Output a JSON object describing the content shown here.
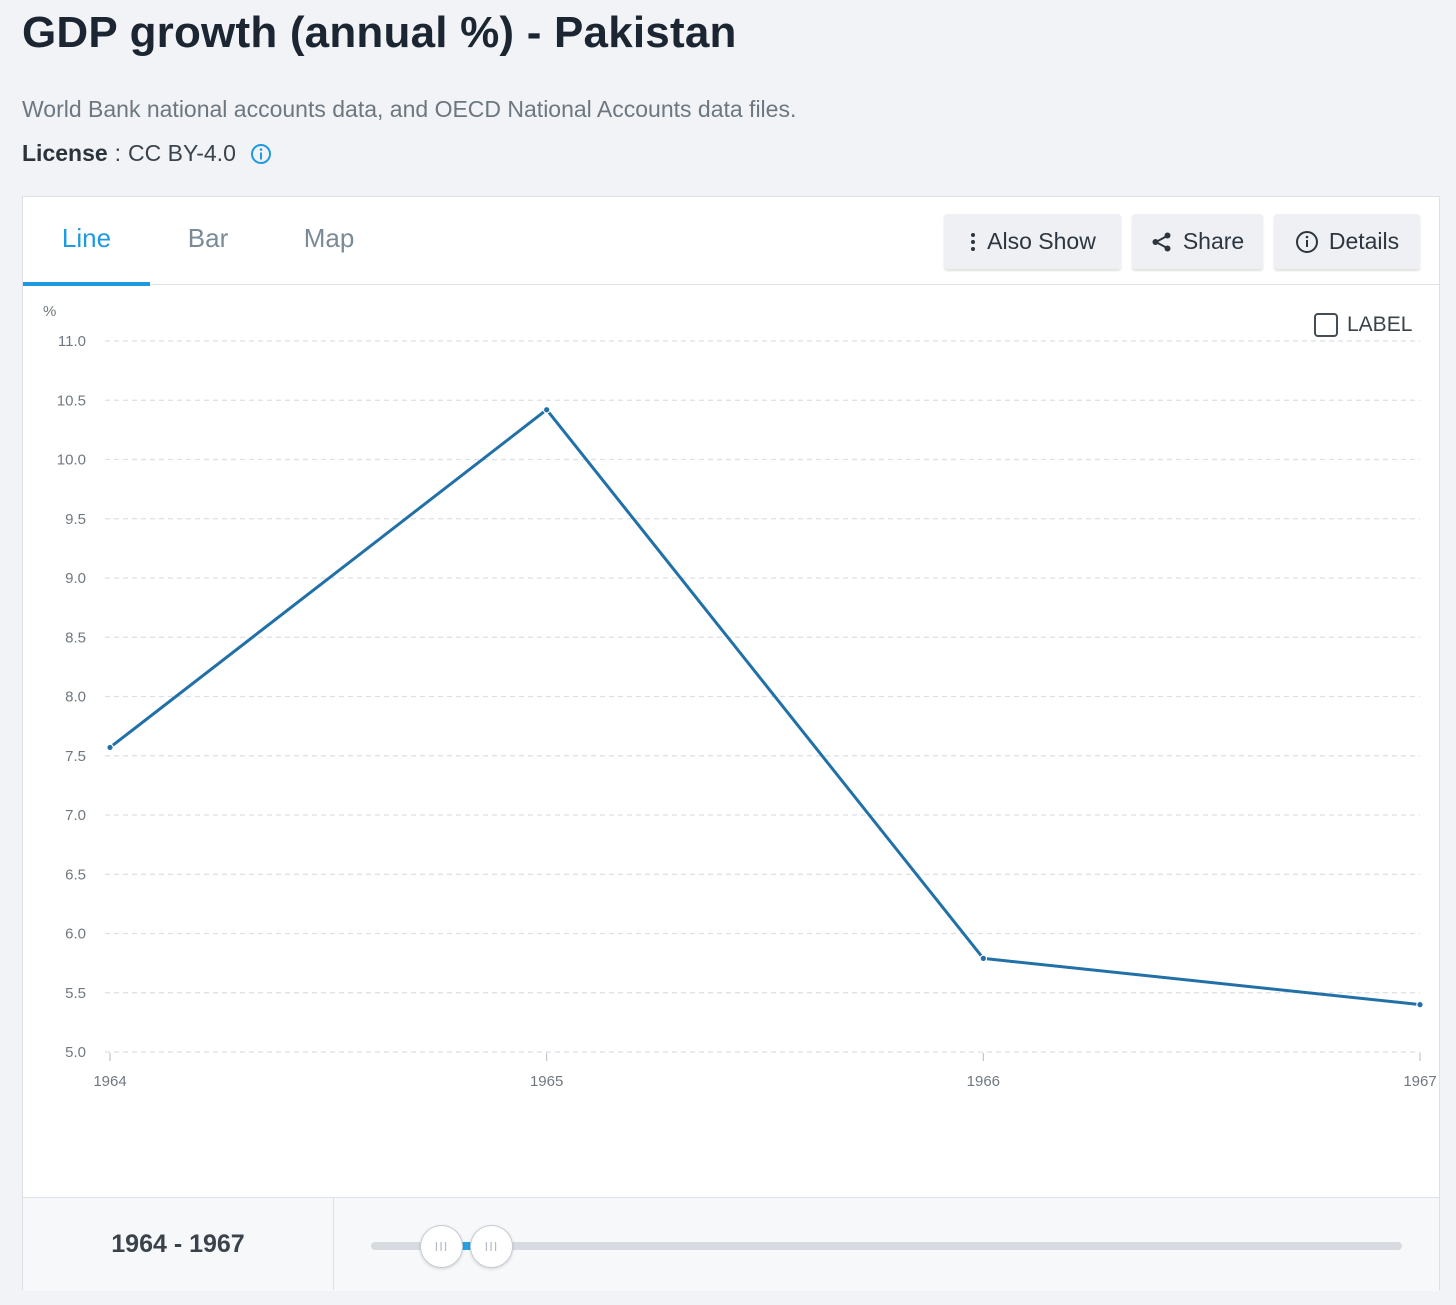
{
  "header": {
    "title": "GDP growth (annual %) - Pakistan",
    "source": "World Bank national accounts data, and OECD National Accounts data files.",
    "license_key": "License",
    "license_sep": ":",
    "license_value": "CC BY-4.0"
  },
  "tabs": [
    {
      "label": "Line",
      "active": true
    },
    {
      "label": "Bar",
      "active": false
    },
    {
      "label": "Map",
      "active": false
    }
  ],
  "toolbar": {
    "also_show": "Also Show",
    "share": "Share",
    "details": "Details"
  },
  "label_toggle": {
    "text": "LABEL",
    "checked": false
  },
  "footer": {
    "range_label": "1964 - 1967",
    "range_start": 1964,
    "range_end": 1967
  },
  "colors": {
    "accent": "#1f9ae0",
    "line": "#2170a8",
    "grid": "#dcdfe3"
  },
  "chart_data": {
    "type": "line",
    "ylabel": "%",
    "xlabel": "",
    "x": [
      "1964",
      "1965",
      "1966",
      "1967"
    ],
    "series": [
      {
        "values": [
          7.57,
          10.42,
          5.79,
          5.4
        ]
      }
    ],
    "ylim": [
      5.0,
      11.0
    ],
    "yticks": [
      "5.0",
      "5.5",
      "6.0",
      "6.5",
      "7.0",
      "7.5",
      "8.0",
      "8.5",
      "9.0",
      "9.5",
      "10.0",
      "10.5",
      "11.0"
    ],
    "grid": true,
    "legend": "none"
  }
}
